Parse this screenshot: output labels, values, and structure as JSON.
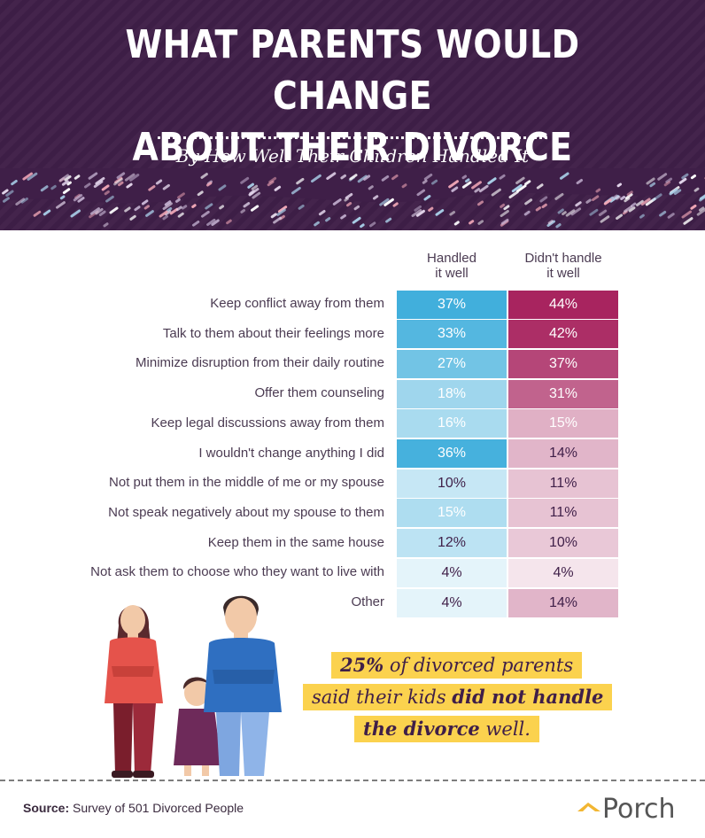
{
  "header": {
    "title_line1": "WHAT PARENTS WOULD CHANGE",
    "title_line2": "ABOUT THEIR DIVORCE",
    "subtitle": "By How Well Their Children Handled It"
  },
  "chart_data": {
    "type": "table",
    "columns": [
      "Handled it well",
      "Didn't handle it well"
    ],
    "column_header_lines": [
      [
        "Handled",
        "it well"
      ],
      [
        "Didn't handle",
        "it well"
      ]
    ],
    "categories": [
      "Keep conflict away from them",
      "Talk to them about their feelings more",
      "Minimize disruption from their daily routine",
      "Offer them counseling",
      "Keep legal discussions away from them",
      "I wouldn't change anything I did",
      "Not put them in the middle of me or my spouse",
      "Not speak negatively about my spouse to them",
      "Keep them in the same house",
      "Not ask them to choose who they want to live with",
      "Other"
    ],
    "series": [
      {
        "name": "Handled it well",
        "values": [
          37,
          33,
          27,
          18,
          16,
          36,
          10,
          15,
          12,
          4,
          4
        ]
      },
      {
        "name": "Didn't handle it well",
        "values": [
          44,
          42,
          37,
          31,
          15,
          14,
          11,
          11,
          10,
          4,
          14
        ]
      }
    ],
    "unit": "%",
    "colors": {
      "handled": "#1ea0d6",
      "not_handled": "#a8245f"
    }
  },
  "callout": {
    "line1_bold": "25%",
    "line1_rest": " of divorced parents",
    "line2_plain": "said their kids ",
    "line2_bold": "did not handle",
    "line3_bold": "the divorce",
    "line3_plain": " well."
  },
  "footer": {
    "source_label": "Source:",
    "source_text": " Survey of 501 Divorced People",
    "brand": "Porch"
  }
}
